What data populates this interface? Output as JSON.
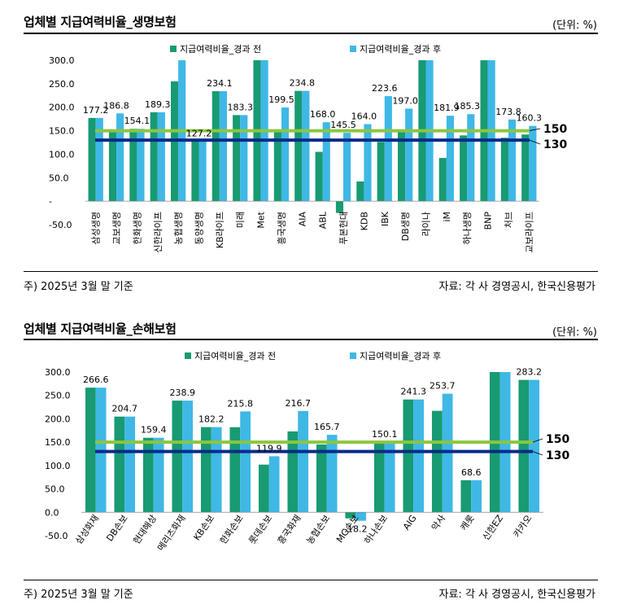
{
  "colors": {
    "before": "#189a73",
    "after": "#3fb8e6",
    "line150": "#8cc63f",
    "line130": "#0a2a8a"
  },
  "life": {
    "title": "업체별 지급여력비율_생명보험",
    "unit": "(단위: %)",
    "note": "주) 2025년 3월 말 기준",
    "source": "자료: 각 사 경영공시, 한국신용평가",
    "chart_data": {
      "type": "bar",
      "categories": [
        "삼성생명",
        "교보생명",
        "한화생명",
        "신한라이프",
        "농협생명",
        "동양생명",
        "KB라이프",
        "미래",
        "Met",
        "흥국생명",
        "AIA",
        "ABL",
        "푸본현대",
        "KDB",
        "IBK",
        "DB생명",
        "라이나",
        "iM",
        "하나생명",
        "BNP",
        "처브",
        "교보라이프"
      ],
      "series": [
        {
          "name": "지급여력비율_경과 전",
          "values": [
            177.2,
            148,
            154.1,
            189.3,
            255,
            127.2,
            234.1,
            183.3,
            300,
            149,
            234.8,
            105,
            -25,
            42,
            126,
            147,
            300,
            92,
            140,
            300,
            135,
            142
          ]
        },
        {
          "name": "지급여력비율_경과 후",
          "values": [
            177.2,
            186.8,
            154.1,
            189.3,
            300,
            127.2,
            234.1,
            183.3,
            300,
            199.5,
            234.8,
            168.0,
            145.5,
            164.0,
            223.6,
            197.0,
            300,
            181.9,
            185.3,
            300,
            173.8,
            160.3
          ]
        }
      ],
      "data_labels": [
        "177.2",
        "186.8",
        "154.1",
        "189.3",
        "",
        "127.2",
        "234.1",
        "183.3",
        "",
        "199.5",
        "234.8",
        "168.0",
        "145.5",
        "164.0",
        "223.6",
        "197.0",
        "",
        "181.9",
        "185.3",
        "",
        "173.8",
        "160.3"
      ],
      "y_ticks": [
        "300.0",
        "250.0",
        "200.0",
        "150.0",
        "100.0",
        "50.0",
        "-",
        "-50.0"
      ],
      "ylim": [
        -50,
        300
      ],
      "reference_lines": [
        {
          "value": 150,
          "label": "150"
        },
        {
          "value": 130,
          "label": "130"
        }
      ],
      "legend_position": "top"
    }
  },
  "nonlife": {
    "title": "업체별 지급여력비율_손해보험",
    "unit": "(단위: %)",
    "note": "주) 2025년 3월 말 기준",
    "source": "자료: 각 사 경영공시, 한국신용평가",
    "chart_data": {
      "type": "bar",
      "categories": [
        "삼성화재",
        "DB손보",
        "현대해상",
        "메리츠화재",
        "KB손보",
        "한화손보",
        "롯데손보",
        "흥국화재",
        "농협손보",
        "MG손보",
        "하나손보",
        "AIG",
        "악사",
        "캐롯",
        "신한EZ",
        "카카오"
      ],
      "series": [
        {
          "name": "지급여력비율_경과 전",
          "values": [
            266.6,
            204.7,
            159.4,
            238.9,
            182.2,
            182,
            102,
            173,
            145,
            -13,
            147,
            241.3,
            217,
            68.6,
            300,
            283.2
          ]
        },
        {
          "name": "지급여력비율_경과 후",
          "values": [
            266.6,
            204.7,
            159.4,
            238.9,
            182.2,
            215.8,
            119.9,
            216.7,
            165.7,
            -18.2,
            150.1,
            241.3,
            253.7,
            68.6,
            300,
            283.2
          ]
        }
      ],
      "data_labels": [
        "266.6",
        "204.7",
        "159.4",
        "238.9",
        "182.2",
        "215.8",
        "119.9",
        "216.7",
        "165.7",
        "-18.2",
        "150.1",
        "241.3",
        "253.7",
        "68.6",
        "",
        "283.2"
      ],
      "y_ticks": [
        "300.0",
        "250.0",
        "200.0",
        "150.0",
        "100.0",
        "50.0",
        "0.0",
        "-50.0"
      ],
      "ylim": [
        -50,
        300
      ],
      "reference_lines": [
        {
          "value": 150,
          "label": "150"
        },
        {
          "value": 130,
          "label": "130"
        }
      ],
      "legend_position": "top"
    }
  }
}
